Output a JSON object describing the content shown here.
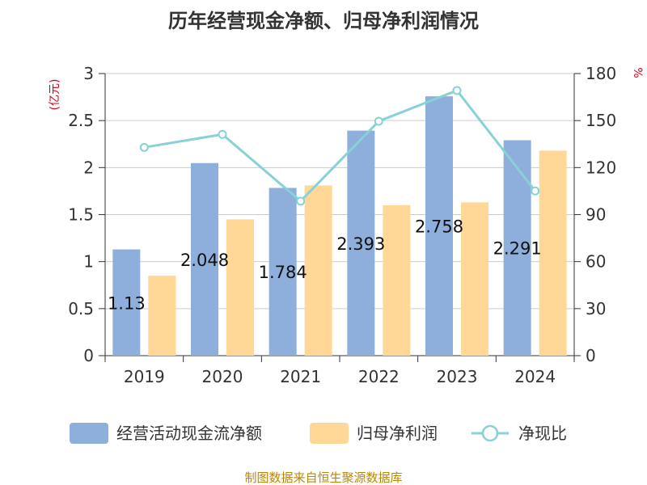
{
  "chart_data": {
    "type": "bar",
    "title": "历年经营现金净额、归母净利润情况",
    "categories": [
      "2019",
      "2020",
      "2021",
      "2022",
      "2023",
      "2024"
    ],
    "series": [
      {
        "name": "经营活动现金流净额",
        "type": "bar",
        "axis": "left",
        "color": "#8eaedb",
        "values": [
          1.13,
          2.048,
          1.784,
          2.393,
          2.758,
          2.291
        ],
        "labels": [
          "1.13",
          "2.048",
          "1.784",
          "2.393",
          "2.758",
          "2.291"
        ]
      },
      {
        "name": "归母净利润",
        "type": "bar",
        "axis": "left",
        "color": "#ffd898",
        "values": [
          0.85,
          1.45,
          1.81,
          1.6,
          1.63,
          2.18
        ]
      },
      {
        "name": "净现比",
        "type": "line",
        "axis": "right",
        "color": "#88d1d6",
        "values": [
          132.9,
          141.2,
          98.6,
          149.6,
          169.2,
          105.1
        ]
      }
    ],
    "left_axis": {
      "unit": "(亿元)",
      "ylim": [
        0,
        3
      ],
      "ticks": [
        "0",
        "0.5",
        "1",
        "1.5",
        "2",
        "2.5",
        "3"
      ]
    },
    "right_axis": {
      "unit": "%",
      "ylim": [
        0,
        180
      ],
      "ticks": [
        "0",
        "30",
        "60",
        "90",
        "120",
        "150",
        "180"
      ]
    },
    "legend_position": "bottom",
    "grid": true
  },
  "source": "制图数据来自恒生聚源数据库"
}
